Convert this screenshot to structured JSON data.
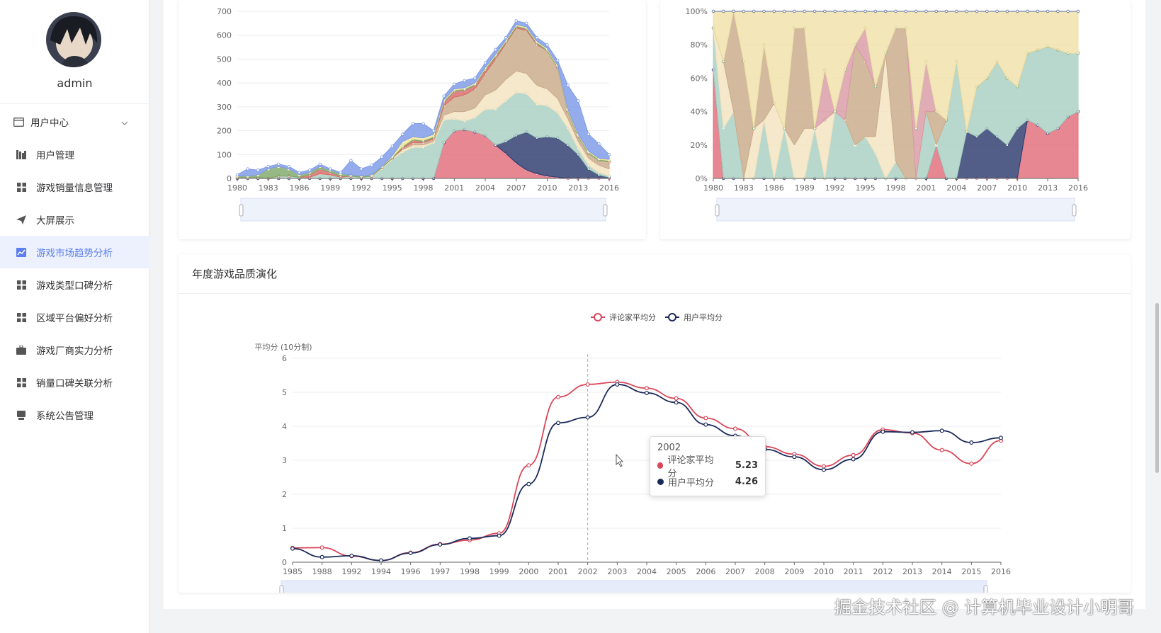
{
  "user": {
    "name": "admin"
  },
  "menu": [
    {
      "label": "用户中心",
      "icon": "user-card-icon",
      "group": true
    },
    {
      "label": "用户管理",
      "icon": "bar-chart-icon"
    },
    {
      "label": "游戏销量信息管理",
      "icon": "grid-icon"
    },
    {
      "label": "大屏展示",
      "icon": "send-icon"
    },
    {
      "label": "游戏市场趋势分析",
      "icon": "trend-icon",
      "active": true
    },
    {
      "label": "游戏类型口碑分析",
      "icon": "grid-icon"
    },
    {
      "label": "区域平台偏好分析",
      "icon": "grid-icon"
    },
    {
      "label": "游戏厂商实力分析",
      "icon": "briefcase-icon"
    },
    {
      "label": "销量口碑关联分析",
      "icon": "grid-icon"
    },
    {
      "label": "系统公告管理",
      "icon": "notice-icon"
    }
  ],
  "colors": {
    "accent": "#5b7ef0",
    "critic": "#d9475a",
    "user": "#1a2a5a"
  },
  "chart_data": [
    {
      "type": "area",
      "stacked": true,
      "ylim": [
        0,
        700
      ],
      "yticks": [
        0,
        100,
        200,
        300,
        400,
        500,
        600,
        700
      ],
      "xtick_labels": [
        "1980",
        "1983",
        "1986",
        "1989",
        "1992",
        "1995",
        "1998",
        "2001",
        "2004",
        "2007",
        "2010",
        "2013",
        "2016"
      ],
      "x": [
        1980,
        1981,
        1982,
        1983,
        1984,
        1985,
        1986,
        1987,
        1988,
        1989,
        1990,
        1991,
        1992,
        1993,
        1994,
        1995,
        1996,
        1997,
        1998,
        1999,
        2000,
        2001,
        2002,
        2003,
        2004,
        2005,
        2006,
        2007,
        2008,
        2009,
        2010,
        2011,
        2012,
        2013,
        2014,
        2015,
        2016
      ],
      "series": [
        {
          "color": "#e06c7a",
          "values": [
            0,
            0,
            0,
            0,
            0,
            0,
            0,
            0,
            0,
            0,
            0,
            0,
            0,
            0,
            0,
            0,
            0,
            0,
            0,
            0,
            150,
            200,
            205,
            195,
            180,
            140,
            105,
            65,
            35,
            20,
            10,
            5,
            0,
            0,
            0,
            0,
            0
          ]
        },
        {
          "color": "#2c3b6e",
          "values": [
            0,
            0,
            0,
            0,
            0,
            0,
            0,
            0,
            0,
            0,
            0,
            0,
            0,
            0,
            0,
            0,
            0,
            0,
            0,
            0,
            0,
            0,
            0,
            0,
            0,
            0,
            50,
            115,
            160,
            150,
            165,
            165,
            140,
            100,
            40,
            15,
            5
          ]
        },
        {
          "color": "#a8d0c2",
          "values": [
            5,
            5,
            5,
            0,
            10,
            10,
            5,
            5,
            20,
            15,
            5,
            10,
            5,
            10,
            40,
            80,
            110,
            130,
            130,
            150,
            95,
            50,
            35,
            60,
            110,
            150,
            170,
            180,
            160,
            140,
            130,
            105,
            70,
            25,
            15,
            10,
            5
          ]
        },
        {
          "color": "#f3e3bf",
          "values": [
            0,
            0,
            0,
            0,
            0,
            0,
            0,
            0,
            0,
            0,
            0,
            0,
            0,
            0,
            5,
            5,
            10,
            10,
            10,
            5,
            20,
            30,
            40,
            40,
            60,
            80,
            90,
            90,
            85,
            80,
            70,
            60,
            40,
            30,
            30,
            30,
            30
          ]
        },
        {
          "color": "#c9ab8a",
          "values": [
            0,
            0,
            0,
            0,
            0,
            0,
            0,
            0,
            0,
            0,
            0,
            0,
            0,
            0,
            0,
            0,
            5,
            10,
            10,
            10,
            40,
            60,
            70,
            80,
            90,
            130,
            150,
            180,
            180,
            170,
            160,
            130,
            30,
            20,
            20,
            20,
            30
          ]
        },
        {
          "color": "#d96a6a",
          "values": [
            0,
            0,
            0,
            0,
            0,
            0,
            0,
            10,
            20,
            10,
            5,
            0,
            0,
            0,
            0,
            0,
            5,
            10,
            5,
            5,
            15,
            25,
            20,
            15,
            15,
            10,
            5,
            5,
            5,
            5,
            0,
            0,
            0,
            0,
            0,
            0,
            0
          ]
        },
        {
          "color": "#7fa86a",
          "values": [
            5,
            5,
            10,
            40,
            40,
            30,
            10,
            10,
            10,
            10,
            10,
            5,
            5,
            5,
            5,
            5,
            5,
            5,
            5,
            5,
            5,
            5,
            5,
            5,
            5,
            5,
            5,
            5,
            5,
            5,
            5,
            5,
            5,
            5,
            5,
            5,
            5
          ]
        },
        {
          "color": "#f0e79a",
          "values": [
            0,
            0,
            0,
            0,
            0,
            0,
            0,
            0,
            0,
            0,
            0,
            0,
            0,
            0,
            0,
            5,
            20,
            10,
            10,
            10,
            5,
            5,
            5,
            5,
            5,
            5,
            5,
            5,
            5,
            5,
            5,
            5,
            5,
            5,
            5,
            5,
            5
          ]
        },
        {
          "color": "#7d9ae8",
          "values": [
            5,
            30,
            20,
            10,
            10,
            10,
            10,
            10,
            10,
            5,
            5,
            60,
            30,
            40,
            40,
            40,
            30,
            55,
            60,
            15,
            15,
            20,
            30,
            20,
            20,
            20,
            10,
            15,
            15,
            15,
            15,
            20,
            100,
            140,
            70,
            60,
            20
          ]
        }
      ]
    },
    {
      "type": "area",
      "stacked": true,
      "percent": true,
      "yticks": [
        "0%",
        "20%",
        "40%",
        "60%",
        "80%",
        "100%"
      ],
      "xtick_labels": [
        "1980",
        "1983",
        "1986",
        "1989",
        "1992",
        "1995",
        "1998",
        "2001",
        "2004",
        "2007",
        "2010",
        "2013",
        "2016"
      ],
      "x": [
        1980,
        1981,
        1982,
        1983,
        1984,
        1985,
        1986,
        1987,
        1988,
        1989,
        1990,
        1991,
        1992,
        1993,
        1994,
        1995,
        1996,
        1997,
        1998,
        1999,
        2000,
        2001,
        2002,
        2003,
        2004,
        2005,
        2006,
        2007,
        2008,
        2009,
        2010,
        2011,
        2012,
        2013,
        2014,
        2015,
        2016
      ],
      "series": [
        {
          "color": "#e06c7a",
          "values": [
            65,
            0,
            0,
            0,
            0,
            0,
            0,
            0,
            0,
            0,
            0,
            0,
            0,
            0,
            0,
            0,
            0,
            0,
            0,
            0,
            0,
            0,
            20,
            0,
            0,
            0,
            0,
            0,
            0,
            0,
            0,
            35,
            32,
            27,
            30,
            37,
            40
          ]
        },
        {
          "color": "#2c3b6e",
          "values": [
            0,
            0,
            0,
            0,
            0,
            0,
            0,
            0,
            0,
            0,
            0,
            0,
            0,
            0,
            0,
            0,
            0,
            0,
            0,
            0,
            0,
            0,
            0,
            0,
            0,
            28,
            25,
            30,
            25,
            20,
            30,
            0,
            0,
            0,
            0,
            0,
            0
          ]
        },
        {
          "color": "#a8d0c2",
          "values": [
            25,
            30,
            40,
            0,
            0,
            35,
            0,
            30,
            0,
            0,
            30,
            0,
            40,
            35,
            20,
            25,
            15,
            0,
            10,
            0,
            0,
            40,
            0,
            35,
            70,
            0,
            30,
            30,
            45,
            40,
            25,
            40,
            45,
            52,
            47,
            38,
            35
          ]
        },
        {
          "color": "#f3e3bf",
          "values": [
            0,
            40,
            0,
            0,
            30,
            0,
            45,
            0,
            20,
            30,
            0,
            35,
            0,
            0,
            0,
            0,
            10,
            75,
            0,
            0,
            0,
            0,
            0,
            0,
            0,
            0,
            0,
            0,
            0,
            0,
            0,
            0,
            0,
            0,
            0,
            0,
            0
          ]
        },
        {
          "color": "#c9ab8a",
          "values": [
            0,
            0,
            60,
            70,
            0,
            45,
            0,
            0,
            70,
            60,
            0,
            0,
            0,
            0,
            60,
            45,
            30,
            0,
            80,
            90,
            0,
            0,
            20,
            0,
            0,
            0,
            0,
            0,
            0,
            0,
            0,
            0,
            0,
            0,
            0,
            0,
            0
          ]
        },
        {
          "color": "#d99aa5",
          "values": [
            0,
            0,
            0,
            0,
            0,
            0,
            0,
            0,
            0,
            0,
            0,
            30,
            0,
            30,
            0,
            20,
            0,
            0,
            0,
            0,
            30,
            30,
            0,
            0,
            0,
            0,
            0,
            0,
            0,
            0,
            0,
            0,
            0,
            0,
            0,
            0,
            0
          ]
        },
        {
          "color": "#7fa86a",
          "values": [
            0,
            0,
            0,
            0,
            0,
            0,
            0,
            0,
            0,
            0,
            0,
            0,
            0,
            0,
            0,
            0,
            0,
            0,
            0,
            0,
            0,
            0,
            0,
            0,
            0,
            0,
            0,
            0,
            0,
            0,
            0,
            0,
            0,
            0,
            0,
            0,
            0
          ]
        },
        {
          "color": "#f0e0a8",
          "values": [
            10,
            30,
            0,
            30,
            70,
            20,
            55,
            70,
            10,
            10,
            70,
            35,
            60,
            35,
            20,
            10,
            45,
            25,
            10,
            10,
            70,
            30,
            60,
            65,
            30,
            72,
            45,
            40,
            30,
            40,
            45,
            25,
            23,
            21,
            23,
            25,
            25
          ]
        },
        {
          "color": "#5a6e9c",
          "values": [
            0,
            0,
            0,
            0,
            0,
            0,
            0,
            0,
            0,
            0,
            0,
            0,
            0,
            0,
            0,
            0,
            0,
            0,
            0,
            0,
            0,
            0,
            0,
            0,
            0,
            0,
            0,
            0,
            0,
            0,
            0,
            0,
            0,
            0,
            0,
            0,
            0
          ]
        }
      ]
    },
    {
      "type": "line",
      "title": "年度游戏品质演化",
      "ylabel": "平均分 (10分制)",
      "ylim": [
        0,
        6
      ],
      "yticks": [
        0,
        1,
        2,
        3,
        4,
        5,
        6
      ],
      "categories": [
        "1985",
        "1988",
        "1992",
        "1994",
        "1996",
        "1997",
        "1998",
        "1999",
        "2000",
        "2001",
        "2002",
        "2003",
        "2004",
        "2005",
        "2006",
        "2007",
        "2008",
        "2009",
        "2010",
        "2011",
        "2012",
        "2013",
        "2014",
        "2015",
        "2016"
      ],
      "series": [
        {
          "name": "评论家平均分",
          "color": "#d9475a",
          "values": [
            0.42,
            0.43,
            0.18,
            0.05,
            0.28,
            0.53,
            0.65,
            0.85,
            2.85,
            4.86,
            5.23,
            5.3,
            5.12,
            4.82,
            4.24,
            3.93,
            3.4,
            3.18,
            2.82,
            3.15,
            3.9,
            3.8,
            3.3,
            2.9,
            3.58
          ]
        },
        {
          "name": "用户平均分",
          "color": "#1a2a5a",
          "values": [
            0.4,
            0.15,
            0.19,
            0.05,
            0.27,
            0.52,
            0.7,
            0.78,
            2.3,
            4.1,
            4.26,
            5.23,
            4.98,
            4.7,
            4.05,
            3.72,
            3.32,
            3.1,
            2.72,
            3.03,
            3.84,
            3.82,
            3.87,
            3.52,
            3.66
          ]
        }
      ],
      "tooltip": {
        "year": "2002",
        "rows": [
          {
            "name": "评论家平均分",
            "value": "5.23"
          },
          {
            "name": "用户平均分",
            "value": "4.26"
          }
        ]
      }
    }
  ],
  "watermark": "掘金技术社区 @ 计算机毕业设计小明哥"
}
